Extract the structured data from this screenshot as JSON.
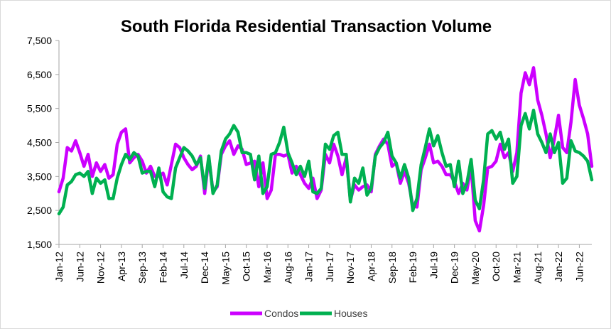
{
  "chart_data": {
    "type": "line",
    "title": "South Florida Residential Transaction Volume",
    "xlabel": "",
    "ylabel": "",
    "ylim": [
      1500,
      7500
    ],
    "yticks": [
      "1,500",
      "2,500",
      "3,500",
      "4,500",
      "5,500",
      "6,500",
      "7,500"
    ],
    "ytick_values": [
      1500,
      2500,
      3500,
      4500,
      5500,
      6500,
      7500
    ],
    "x_start": "Jan-12",
    "xtick_labels": [
      "Jan-12",
      "Jun-12",
      "Nov-12",
      "Apr-13",
      "Sep-13",
      "Feb-14",
      "Jul-14",
      "Dec-14",
      "May-15",
      "Oct-15",
      "Mar-16",
      "Aug-16",
      "Jan-17",
      "Jun-17",
      "Nov-17",
      "Apr-18",
      "Sep-18",
      "Feb-19",
      "Jul-19",
      "Dec-19",
      "May-20",
      "Oct-20",
      "Mar-21",
      "Aug-21",
      "Jan-22",
      "Jun-22"
    ],
    "grid": false,
    "legend_position": "bottom",
    "series": [
      {
        "name": "Condos",
        "color": "#cc00ff",
        "values": [
          3050,
          3450,
          4350,
          4250,
          4550,
          4200,
          3800,
          4150,
          3500,
          3900,
          3650,
          3850,
          3450,
          3550,
          4450,
          4800,
          4900,
          3900,
          4050,
          4150,
          3950,
          3600,
          3800,
          3500,
          3500,
          3600,
          3250,
          3850,
          4450,
          4350,
          4050,
          3850,
          3700,
          3800,
          4100,
          3000,
          4050,
          3050,
          3200,
          4150,
          4400,
          4550,
          4150,
          4400,
          4300,
          3850,
          3900,
          3950,
          3200,
          3900,
          2850,
          3100,
          4150,
          4150,
          4100,
          4150,
          3600,
          3800,
          3550,
          3300,
          3150,
          3450,
          2850,
          3100,
          4150,
          3900,
          4450,
          4100,
          3550,
          4050,
          2800,
          3250,
          3100,
          3200,
          3250,
          3050,
          4150,
          4400,
          4600,
          4450,
          3800,
          3900,
          3300,
          3650,
          3300,
          2650,
          2600,
          3700,
          4050,
          4450,
          3900,
          3950,
          3800,
          3550,
          3550,
          3350,
          3000,
          3300,
          3100,
          3800,
          2200,
          1900,
          2650,
          3750,
          3800,
          3950,
          4450,
          4050,
          4200,
          3650,
          4200,
          5950,
          6550,
          6200,
          6700,
          5750,
          5300,
          4750,
          4050,
          4600,
          5300,
          4350,
          4200,
          5100,
          6350,
          5600,
          5200,
          4750,
          3800
        ]
      },
      {
        "name": "Houses",
        "color": "#00b050",
        "values": [
          2400,
          2600,
          3250,
          3350,
          3550,
          3600,
          3500,
          3650,
          3000,
          3450,
          3300,
          3400,
          2850,
          2850,
          3450,
          3850,
          4150,
          4000,
          4200,
          4100,
          3600,
          3650,
          3650,
          3200,
          3750,
          3050,
          2900,
          2850,
          3750,
          4050,
          4350,
          4250,
          4100,
          3850,
          4050,
          3150,
          4100,
          3000,
          3250,
          4250,
          4600,
          4750,
          5000,
          4800,
          4200,
          4200,
          4150,
          3400,
          4100,
          3000,
          3200,
          4150,
          4200,
          4500,
          4950,
          4200,
          3900,
          3550,
          3800,
          3500,
          3950,
          3050,
          3000,
          3150,
          4450,
          4300,
          4700,
          4800,
          4150,
          4150,
          2750,
          3450,
          3300,
          3750,
          2950,
          3150,
          4100,
          4350,
          4500,
          4800,
          4100,
          3900,
          3450,
          3850,
          3450,
          2500,
          2850,
          3850,
          4350,
          4900,
          4400,
          4700,
          4200,
          3800,
          3850,
          3200,
          3950,
          3000,
          3300,
          4000,
          2800,
          2550,
          3400,
          4750,
          4850,
          4600,
          4800,
          4300,
          4600,
          3300,
          3500,
          5000,
          5350,
          4900,
          5450,
          4750,
          4500,
          4200,
          4750,
          4200,
          4500,
          3300,
          3450,
          4550,
          4250,
          4200,
          4100,
          3950,
          3400
        ]
      }
    ]
  }
}
